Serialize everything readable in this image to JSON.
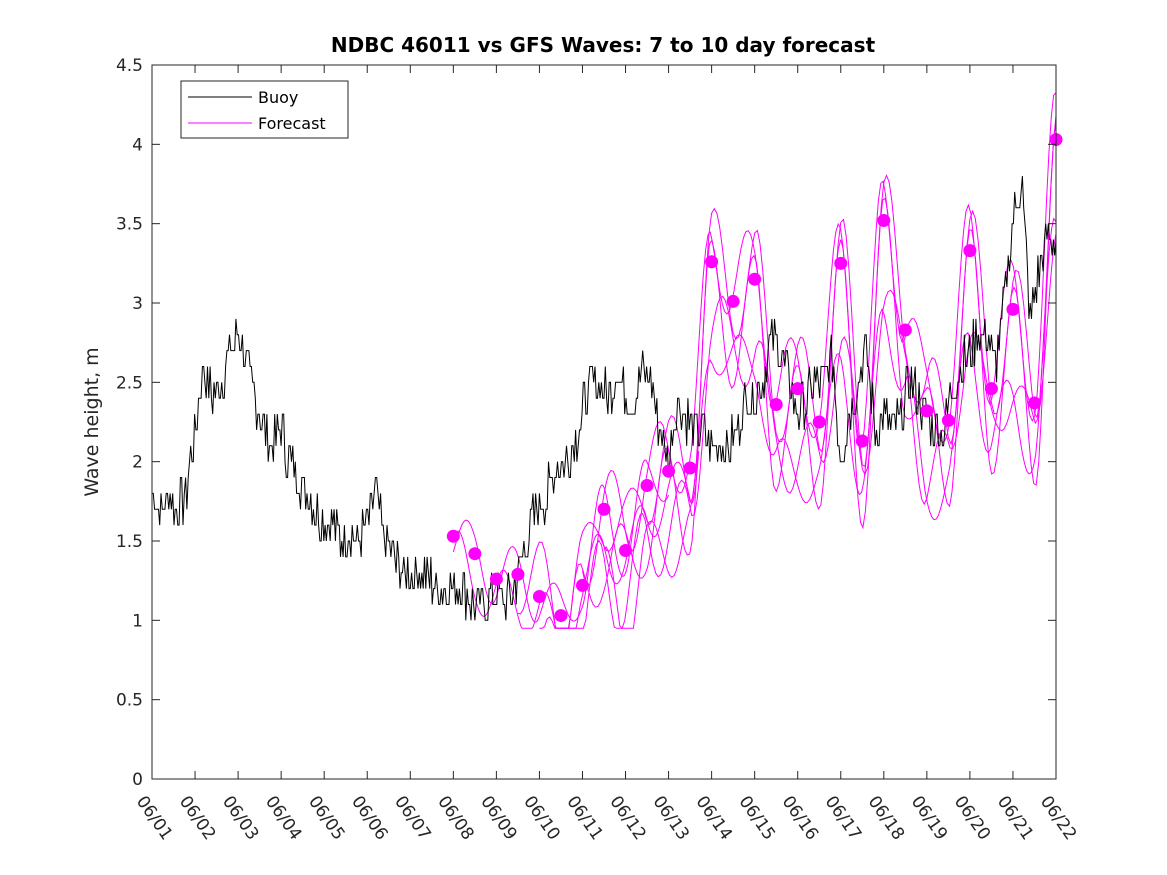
{
  "chart_data": {
    "type": "line",
    "title": "NDBC 46011 vs GFS Waves: 7 to 10 day forecast",
    "xlabel": "",
    "ylabel": "Wave height, m",
    "xlim": [
      0,
      21
    ],
    "ylim": [
      0,
      4.5
    ],
    "x_ticks": [
      "06/01",
      "06/02",
      "06/03",
      "06/04",
      "06/05",
      "06/06",
      "06/07",
      "06/08",
      "06/09",
      "06/10",
      "06/11",
      "06/12",
      "06/13",
      "06/14",
      "06/15",
      "06/16",
      "06/17",
      "06/18",
      "06/19",
      "06/20",
      "06/21",
      "06/22"
    ],
    "y_ticks": [
      "0",
      "0.5",
      "1",
      "1.5",
      "2",
      "2.5",
      "3",
      "3.5",
      "4",
      "4.5"
    ],
    "legend": {
      "location": "top-left",
      "entries": [
        {
          "name": "Buoy",
          "color": "#000000"
        },
        {
          "name": "Forecast",
          "color": "#ff00ff"
        }
      ]
    },
    "colors": {
      "buoy": "#000000",
      "forecast": "#ff00ff"
    },
    "series": [
      {
        "name": "Buoy",
        "x": [
          0,
          0.2,
          0.4,
          0.6,
          0.8,
          1.0,
          1.2,
          1.4,
          1.6,
          1.8,
          2.0,
          2.2,
          2.4,
          2.6,
          2.8,
          3.0,
          3.2,
          3.4,
          3.6,
          3.8,
          4.0,
          4.2,
          4.4,
          4.6,
          4.8,
          5.0,
          5.2,
          5.4,
          5.6,
          5.8,
          6.0,
          6.2,
          6.4,
          6.6,
          6.8,
          7.0,
          7.2,
          7.4,
          7.6,
          7.8,
          8.0,
          8.2,
          8.4,
          8.6,
          8.8,
          9.0,
          9.2,
          9.4,
          9.6,
          9.8,
          10.0,
          10.2,
          10.4,
          10.6,
          10.8,
          11.0,
          11.2,
          11.4,
          11.6,
          11.8,
          12.0,
          12.2,
          12.4,
          12.6,
          12.8,
          13.0,
          13.2,
          13.4,
          13.6,
          13.8,
          14.0,
          14.2,
          14.4,
          14.6,
          14.8,
          15.0,
          15.2,
          15.4,
          15.6,
          15.8,
          16.0,
          16.2,
          16.4,
          16.6,
          16.8,
          17.0,
          17.2,
          17.4,
          17.6,
          17.8,
          18.0,
          18.2,
          18.4,
          18.6,
          18.8,
          19.0,
          19.2,
          19.4,
          19.6,
          19.8,
          20.0,
          20.2,
          20.4,
          20.6,
          20.8,
          21.0
        ],
        "y": [
          1.8,
          1.7,
          1.8,
          1.7,
          1.8,
          2.2,
          2.6,
          2.4,
          2.5,
          2.7,
          2.8,
          2.6,
          2.4,
          2.2,
          2.1,
          2.2,
          2.0,
          1.9,
          1.8,
          1.7,
          1.6,
          1.6,
          1.5,
          1.6,
          1.5,
          1.6,
          1.8,
          1.5,
          1.4,
          1.3,
          1.3,
          1.3,
          1.3,
          1.2,
          1.2,
          1.2,
          1.2,
          1.1,
          1.1,
          1.1,
          1.2,
          1.1,
          1.2,
          1.4,
          1.6,
          1.7,
          1.8,
          2.0,
          2.0,
          2.1,
          2.3,
          2.5,
          2.5,
          2.4,
          2.6,
          2.4,
          2.4,
          2.6,
          2.5,
          2.2,
          2.0,
          2.4,
          2.3,
          2.2,
          2.2,
          2.1,
          2.1,
          2.1,
          2.2,
          2.4,
          2.4,
          2.5,
          2.8,
          2.7,
          2.5,
          2.3,
          2.4,
          2.5,
          2.5,
          2.7,
          2.0,
          2.3,
          2.5,
          2.7,
          2.2,
          2.3,
          2.2,
          2.3,
          2.5,
          2.4,
          2.3,
          2.2,
          2.2,
          2.5,
          2.6,
          2.7,
          2.8,
          2.8,
          2.6,
          3.0,
          3.5,
          3.8,
          2.9,
          3.2,
          3.4,
          3.4
        ]
      },
      {
        "name": "Forecast",
        "x": [
          7.0,
          7.5,
          8.0,
          8.5,
          9.0,
          9.5,
          10.0,
          10.5,
          11.0,
          11.5,
          12.0,
          12.5,
          13.0,
          13.5,
          14.0,
          14.5,
          15.0,
          15.5,
          16.0,
          16.5,
          17.0,
          17.5,
          18.0,
          18.5,
          19.0,
          19.5,
          20.0,
          20.5,
          21.0
        ],
        "y": [
          1.53,
          1.42,
          1.26,
          1.29,
          1.15,
          1.03,
          1.22,
          1.7,
          1.44,
          1.85,
          1.94,
          1.96,
          3.26,
          3.01,
          3.15,
          2.36,
          2.46,
          2.25,
          3.25,
          2.13,
          3.52,
          2.83,
          2.32,
          2.26,
          3.33,
          2.46,
          2.96,
          2.37,
          4.03
        ]
      }
    ]
  }
}
